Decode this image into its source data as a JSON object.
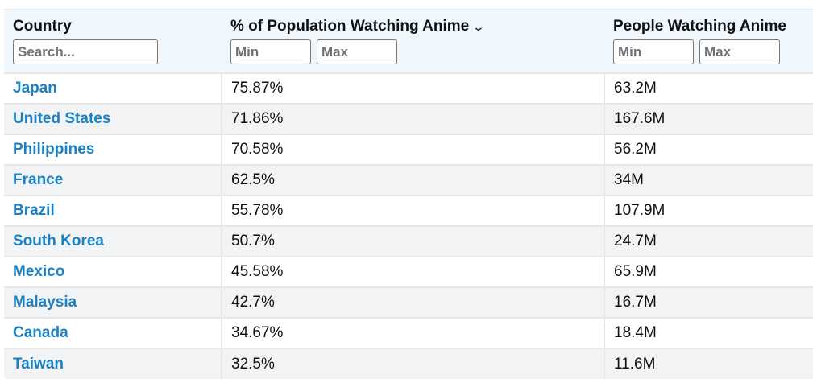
{
  "columns": [
    {
      "label": "Country",
      "filter": {
        "search_placeholder": "Search..."
      }
    },
    {
      "label": "% of Population Watching Anime",
      "sort_icon": "chevron-down-icon",
      "filter": {
        "min_placeholder": "Min",
        "max_placeholder": "Max"
      }
    },
    {
      "label": "People Watching Anime",
      "filter": {
        "min_placeholder": "Min",
        "max_placeholder": "Max"
      }
    }
  ],
  "rows": [
    {
      "country": "Japan",
      "percent": "75.87%",
      "people": "63.2M"
    },
    {
      "country": "United States",
      "percent": "71.86%",
      "people": "167.6M"
    },
    {
      "country": "Philippines",
      "percent": "70.58%",
      "people": "56.2M"
    },
    {
      "country": "France",
      "percent": "62.5%",
      "people": "34M"
    },
    {
      "country": "Brazil",
      "percent": "55.78%",
      "people": "107.9M"
    },
    {
      "country": "South Korea",
      "percent": "50.7%",
      "people": "24.7M"
    },
    {
      "country": "Mexico",
      "percent": "45.58%",
      "people": "65.9M"
    },
    {
      "country": "Malaysia",
      "percent": "42.7%",
      "people": "16.7M"
    },
    {
      "country": "Canada",
      "percent": "34.67%",
      "people": "18.4M"
    },
    {
      "country": "Taiwan",
      "percent": "32.5%",
      "people": "11.6M"
    }
  ],
  "colors": {
    "link": "#1a82c4",
    "header_bg": "#eff7fd"
  }
}
